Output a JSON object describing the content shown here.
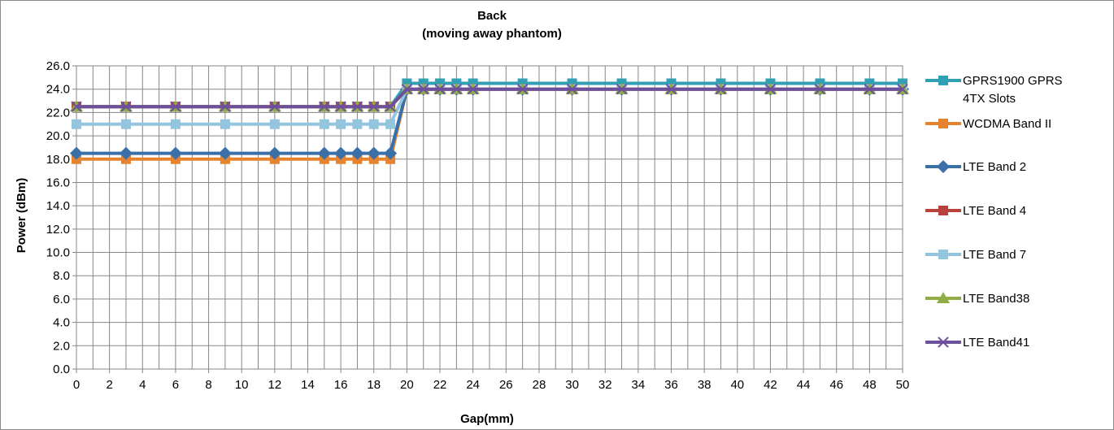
{
  "chart_data": {
    "type": "line",
    "title": "Back",
    "subtitle": "(moving away phantom)",
    "xlabel": "Gap(mm)",
    "ylabel": "Power (dBm)",
    "x_ticks": [
      "0",
      "2",
      "4",
      "6",
      "8",
      "10",
      "12",
      "14",
      "16",
      "18",
      "20",
      "22",
      "24",
      "26",
      "28",
      "30",
      "32",
      "34",
      "36",
      "38",
      "40",
      "42",
      "44",
      "46",
      "48",
      "50"
    ],
    "y_ticks": [
      "0.0",
      "2.0",
      "4.0",
      "6.0",
      "8.0",
      "10.0",
      "12.0",
      "14.0",
      "16.0",
      "18.0",
      "20.0",
      "22.0",
      "24.0",
      "26.0"
    ],
    "xlim": [
      0,
      50
    ],
    "ylim": [
      0,
      26
    ],
    "grid": true,
    "legend_position": "right",
    "x": [
      0,
      3,
      6,
      9,
      12,
      15,
      16,
      17,
      18,
      19,
      20,
      21,
      22,
      23,
      24,
      27,
      30,
      33,
      36,
      39,
      42,
      45,
      48,
      50
    ],
    "series": [
      {
        "name": "GPRS1900 GPRS 4TX Slots",
        "legend_lines": [
          "GPRS1900 GPRS",
          "4TX Slots"
        ],
        "color": "#31a0b4",
        "marker": "square",
        "values": [
          22.5,
          22.5,
          22.5,
          22.5,
          22.5,
          22.5,
          22.5,
          22.5,
          22.5,
          22.5,
          24.5,
          24.5,
          24.5,
          24.5,
          24.5,
          24.5,
          24.5,
          24.5,
          24.5,
          24.5,
          24.5,
          24.5,
          24.5,
          24.5
        ]
      },
      {
        "name": "WCDMA Band II",
        "legend_lines": [
          "WCDMA Band II"
        ],
        "color": "#e6832f",
        "marker": "square",
        "values": [
          18.0,
          18.0,
          18.0,
          18.0,
          18.0,
          18.0,
          18.0,
          18.0,
          18.0,
          18.0,
          24.0,
          24.0,
          24.0,
          24.0,
          24.0,
          24.0,
          24.0,
          24.0,
          24.0,
          24.0,
          24.0,
          24.0,
          24.0,
          24.0
        ]
      },
      {
        "name": "LTE Band 2",
        "legend_lines": [
          "LTE Band 2"
        ],
        "color": "#3a6fa8",
        "marker": "diamond",
        "values": [
          18.5,
          18.5,
          18.5,
          18.5,
          18.5,
          18.5,
          18.5,
          18.5,
          18.5,
          18.5,
          24.0,
          24.0,
          24.0,
          24.0,
          24.0,
          24.0,
          24.0,
          24.0,
          24.0,
          24.0,
          24.0,
          24.0,
          24.0,
          24.0
        ]
      },
      {
        "name": "LTE Band 4",
        "legend_lines": [
          "LTE Band 4"
        ],
        "color": "#b8433e",
        "marker": "square",
        "values": [
          22.5,
          22.5,
          22.5,
          22.5,
          22.5,
          22.5,
          22.5,
          22.5,
          22.5,
          22.5,
          24.0,
          24.0,
          24.0,
          24.0,
          24.0,
          24.0,
          24.0,
          24.0,
          24.0,
          24.0,
          24.0,
          24.0,
          24.0,
          24.0
        ]
      },
      {
        "name": "LTE Band 7",
        "legend_lines": [
          "LTE Band 7"
        ],
        "color": "#93c5df",
        "marker": "square",
        "values": [
          21.0,
          21.0,
          21.0,
          21.0,
          21.0,
          21.0,
          21.0,
          21.0,
          21.0,
          21.0,
          24.0,
          24.0,
          24.0,
          24.0,
          24.0,
          24.0,
          24.0,
          24.0,
          24.0,
          24.0,
          24.0,
          24.0,
          24.0,
          24.0
        ]
      },
      {
        "name": "LTE Band38",
        "legend_lines": [
          "LTE Band38"
        ],
        "color": "#8fae45",
        "marker": "triangle",
        "values": [
          22.5,
          22.5,
          22.5,
          22.5,
          22.5,
          22.5,
          22.5,
          22.5,
          22.5,
          22.5,
          24.0,
          24.0,
          24.0,
          24.0,
          24.0,
          24.0,
          24.0,
          24.0,
          24.0,
          24.0,
          24.0,
          24.0,
          24.0,
          24.0
        ]
      },
      {
        "name": "LTE Band41",
        "legend_lines": [
          "LTE Band41"
        ],
        "color": "#6e4f9e",
        "marker": "x",
        "values": [
          22.5,
          22.5,
          22.5,
          22.5,
          22.5,
          22.5,
          22.5,
          22.5,
          22.5,
          22.5,
          24.0,
          24.0,
          24.0,
          24.0,
          24.0,
          24.0,
          24.0,
          24.0,
          24.0,
          24.0,
          24.0,
          24.0,
          24.0,
          24.0
        ]
      }
    ]
  }
}
